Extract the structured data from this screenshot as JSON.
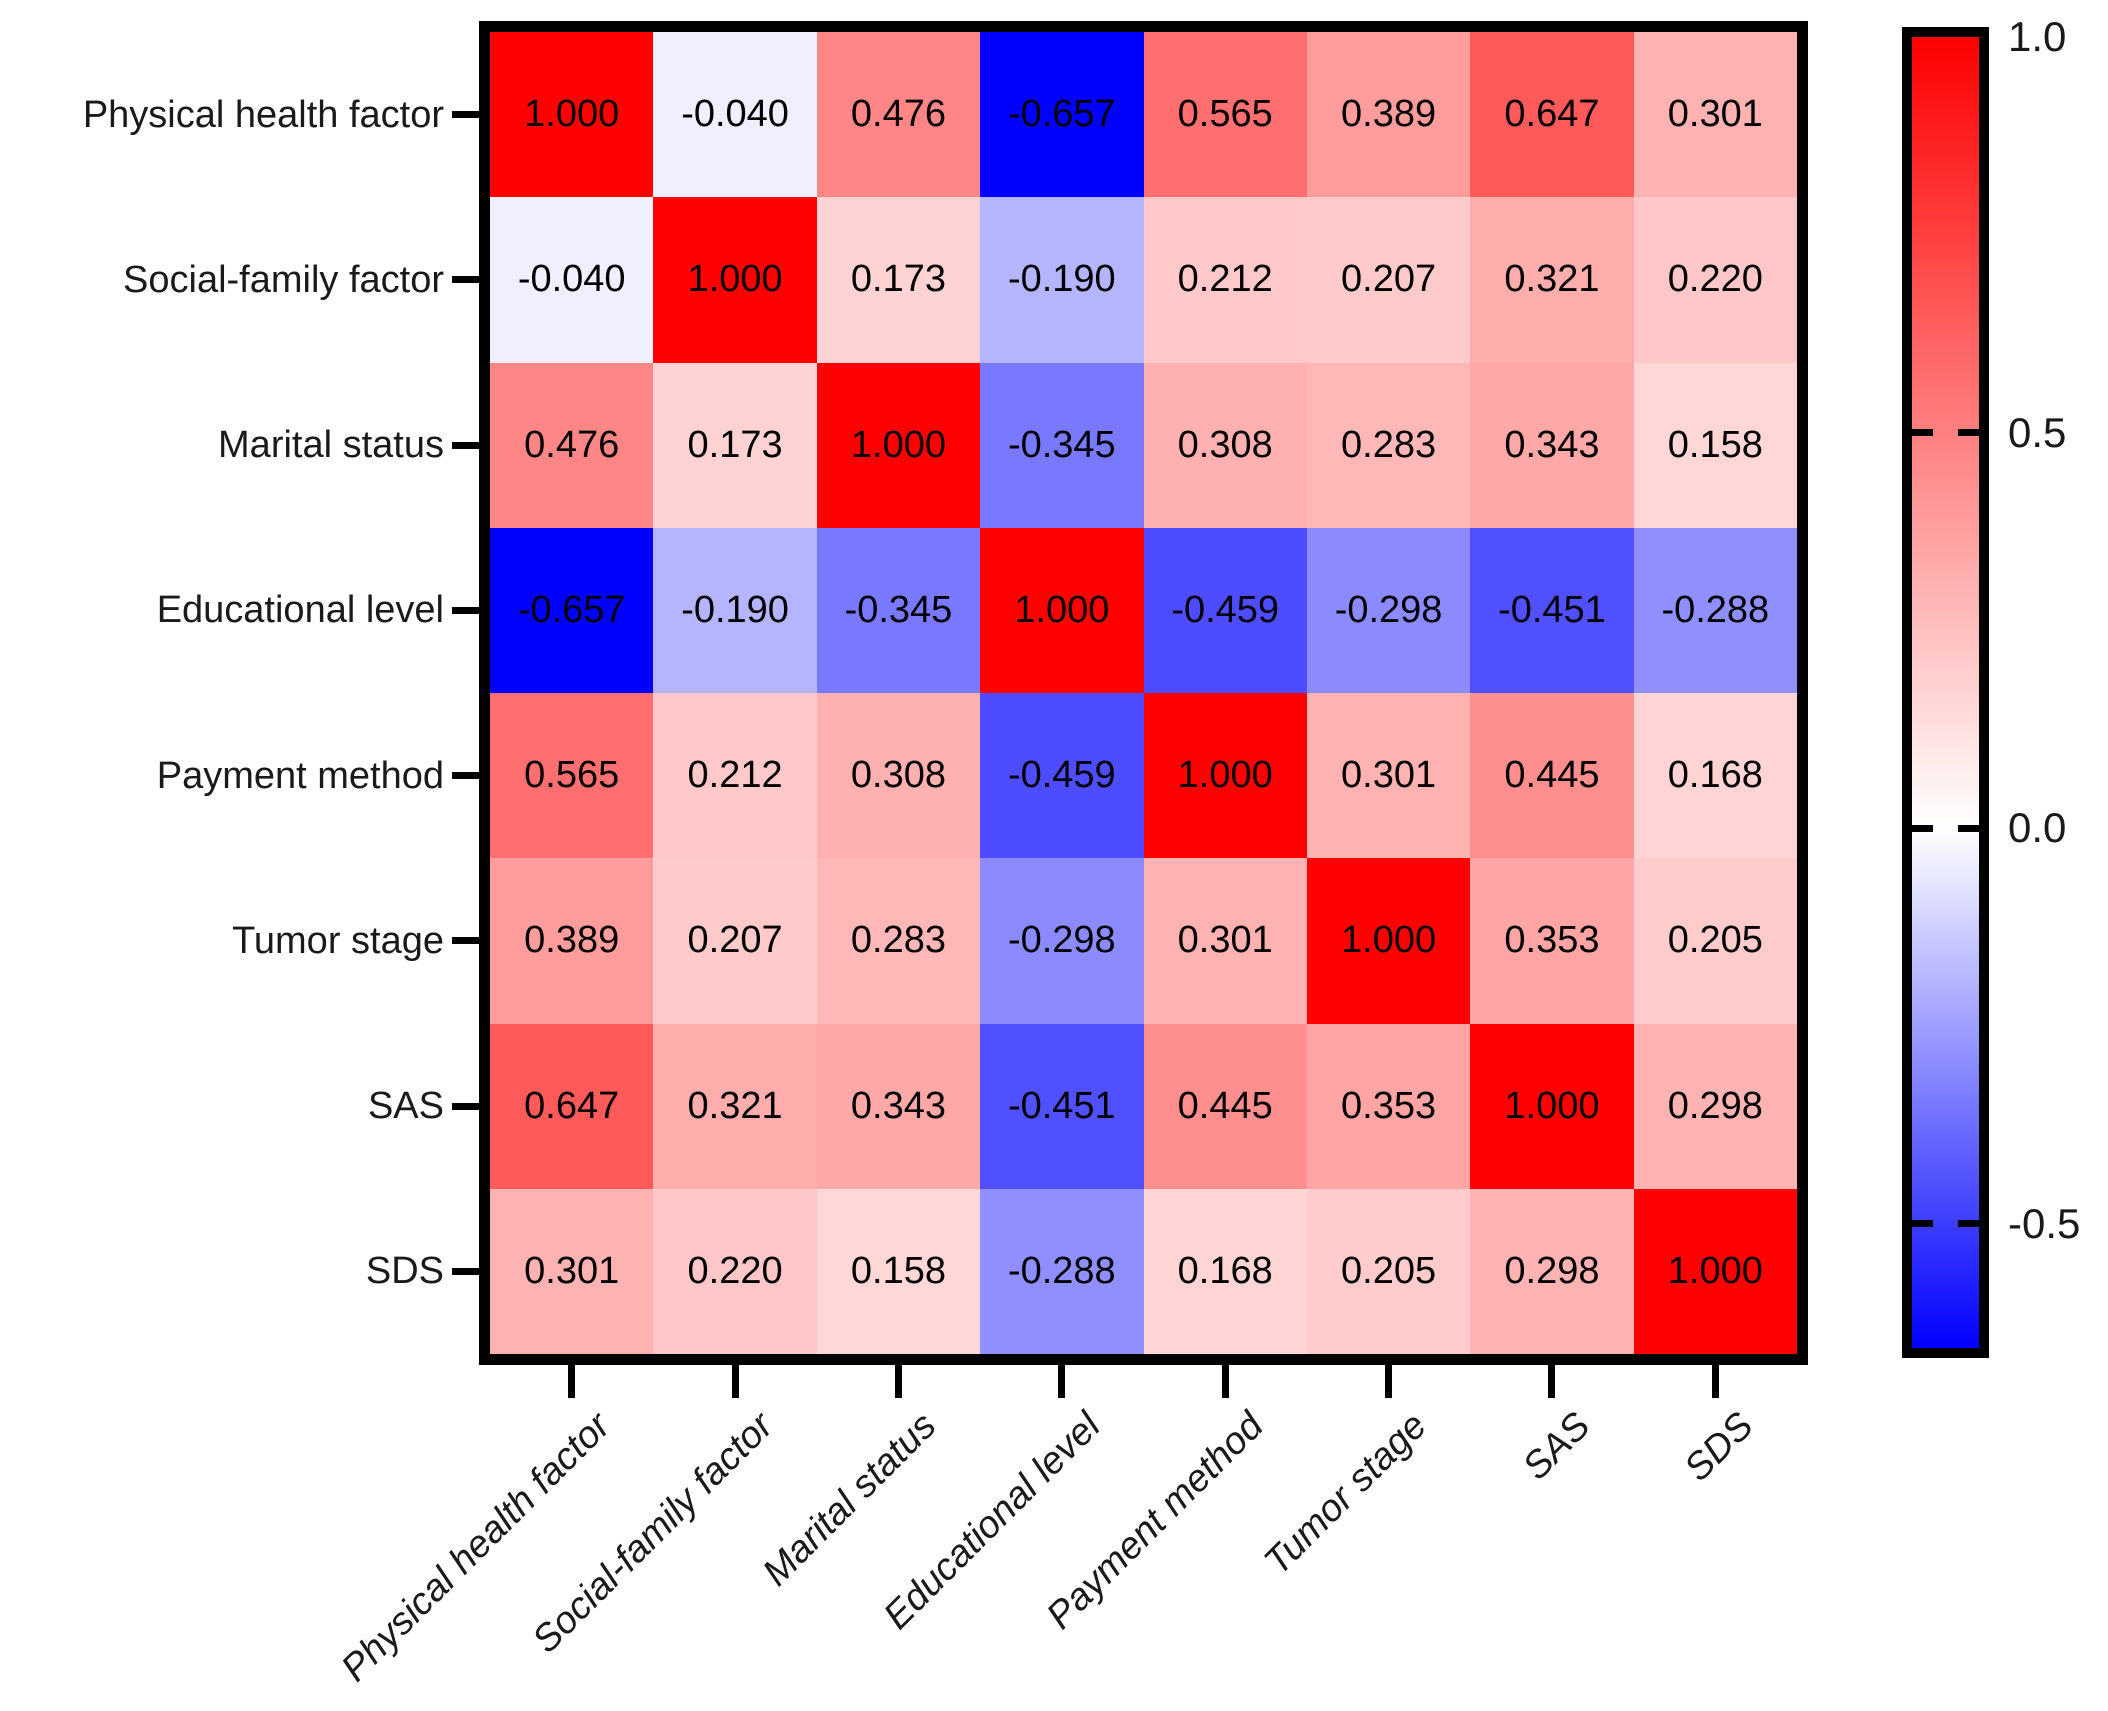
{
  "chart_data": {
    "type": "heatmap",
    "title": "",
    "variables": [
      "Physical health factor",
      "Social-family factor",
      "Marital status",
      "Educational level",
      "Payment method",
      "Tumor stage",
      "SAS",
      "SDS"
    ],
    "matrix": [
      [
        1.0,
        -0.04,
        0.476,
        -0.657,
        0.565,
        0.389,
        0.647,
        0.301
      ],
      [
        -0.04,
        1.0,
        0.173,
        -0.19,
        0.212,
        0.207,
        0.321,
        0.22
      ],
      [
        0.476,
        0.173,
        1.0,
        -0.345,
        0.308,
        0.283,
        0.343,
        0.158
      ],
      [
        -0.657,
        -0.19,
        -0.345,
        1.0,
        -0.459,
        -0.298,
        -0.451,
        -0.288
      ],
      [
        0.565,
        0.212,
        0.308,
        -0.459,
        1.0,
        0.301,
        0.445,
        0.168
      ],
      [
        0.389,
        0.207,
        0.283,
        -0.298,
        0.301,
        1.0,
        0.353,
        0.205
      ],
      [
        0.647,
        0.321,
        0.343,
        -0.451,
        0.445,
        0.353,
        1.0,
        0.298
      ],
      [
        0.301,
        0.22,
        0.158,
        -0.288,
        0.168,
        0.205,
        0.298,
        1.0
      ]
    ],
    "value_decimals": 3,
    "colorbar": {
      "vmax": 1.0,
      "vmin": -0.657,
      "color_positive": "#ff0000",
      "color_zero": "#ffffff",
      "color_negative": "#0000ff",
      "ticks": [
        1.0,
        0.5,
        0.0,
        -0.5
      ],
      "tick_labels": [
        "1.0",
        "0.5",
        "0.0",
        "-0.5"
      ]
    },
    "layout_hints": {
      "x_tick_label_style": "italic, rotated 45deg, anchored right",
      "y_tick_label_style": "regular, right-aligned",
      "grid": false,
      "legend_position": "colorbar-right"
    }
  }
}
